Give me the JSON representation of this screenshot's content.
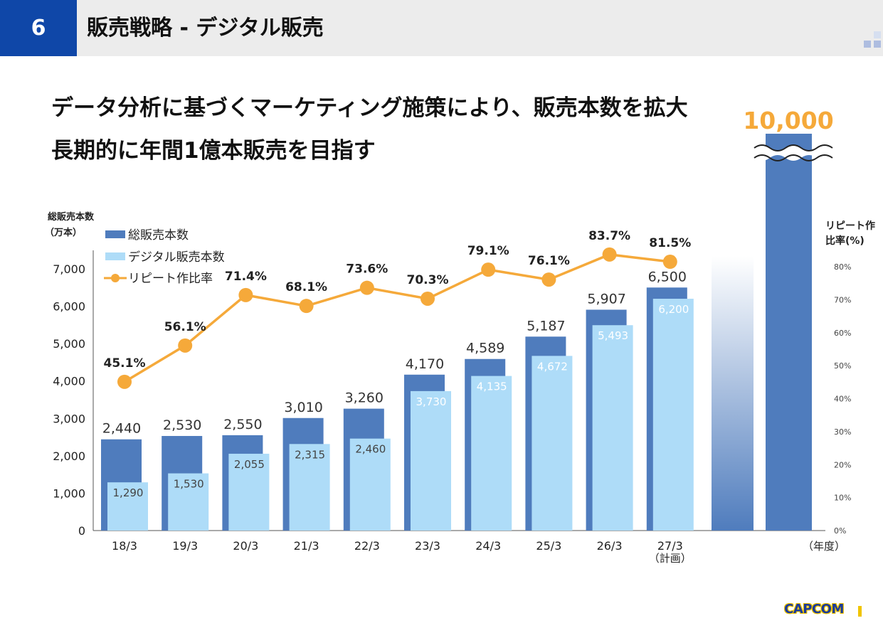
{
  "header": {
    "page_number": "6",
    "title": "販売戦略 - デジタル販売"
  },
  "headline": {
    "line1": "データ分析に基づくマーケティング施策により、販売本数を拡大",
    "line2": "長期的に年間1億本販売を目指す"
  },
  "logo": {
    "text": "CAPCOM"
  },
  "colors": {
    "total_bar": "#4f7cbd",
    "digital_bar": "#aedcf8",
    "repeat_line": "#f5a93a",
    "header_blue": "#0f47a8"
  },
  "chart_data": {
    "type": "bar",
    "categories": [
      "18/3",
      "19/3",
      "20/3",
      "21/3",
      "22/3",
      "23/3",
      "24/3",
      "25/3",
      "26/3",
      "27/3"
    ],
    "category_note": "（計画）",
    "series": [
      {
        "name": "総販売本数",
        "type": "bar",
        "values": [
          2440,
          2530,
          2550,
          3010,
          3260,
          4170,
          4589,
          5187,
          5907,
          6500
        ],
        "labels": [
          "2,440",
          "2,530",
          "2,550",
          "3,010",
          "3,260",
          "4,170",
          "4,589",
          "5,187",
          "5,907",
          "6,500"
        ]
      },
      {
        "name": "デジタル販売本数",
        "type": "bar",
        "values": [
          1290,
          1530,
          2055,
          2315,
          2460,
          3730,
          4135,
          4672,
          5493,
          6200
        ],
        "labels": [
          "1,290",
          "1,530",
          "2,055",
          "2,315",
          "2,460",
          "3,730",
          "4,135",
          "4,672",
          "5,493",
          "6,200"
        ]
      },
      {
        "name": "リピート作比率",
        "type": "line",
        "axis": "right",
        "values": [
          45.1,
          56.1,
          71.4,
          68.1,
          73.6,
          70.3,
          79.1,
          76.1,
          83.7,
          81.5
        ],
        "labels": [
          "45.1%",
          "56.1%",
          "71.4%",
          "68.1%",
          "73.6%",
          "70.3%",
          "79.1%",
          "76.1%",
          "83.7%",
          "81.5%"
        ]
      }
    ],
    "target": {
      "value": 10000,
      "label": "10,000"
    },
    "y_left": {
      "label_line1": "総販売本数",
      "label_line2": "（万本）",
      "range": [
        0,
        7000
      ],
      "ticks": [
        0,
        1000,
        2000,
        3000,
        4000,
        5000,
        6000,
        7000
      ],
      "tick_labels": [
        "0",
        "1,000",
        "2,000",
        "3,000",
        "4,000",
        "5,000",
        "6,000",
        "7,000"
      ]
    },
    "y_right": {
      "label_line1": "リピート作",
      "label_line2": "比率(%)",
      "range": [
        0,
        80
      ],
      "ticks": [
        0,
        10,
        20,
        30,
        40,
        50,
        60,
        70,
        80
      ],
      "tick_labels": [
        "0%",
        "10%",
        "20%",
        "30%",
        "40%",
        "50%",
        "60%",
        "70%",
        "80%"
      ]
    },
    "x_label": "（年度）",
    "legend_position": "top-left",
    "grid": false
  }
}
